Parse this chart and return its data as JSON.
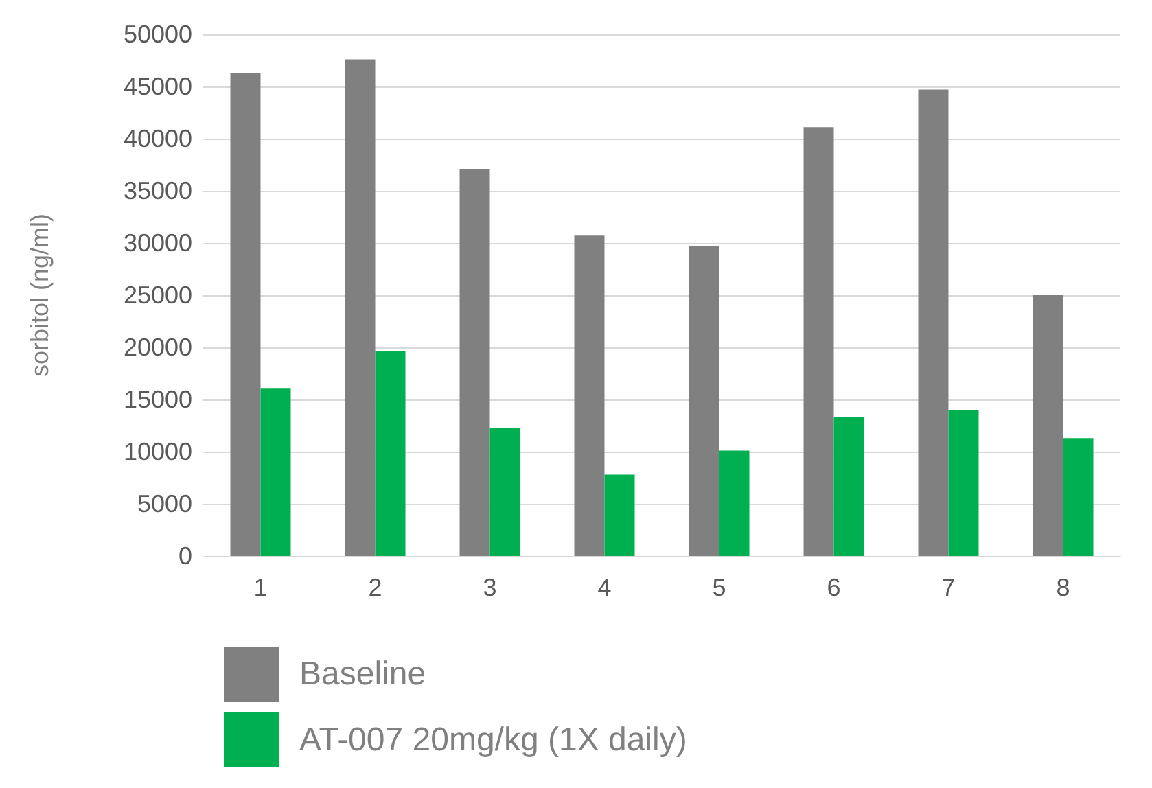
{
  "chart_data": {
    "type": "bar",
    "ylabel": "sorbitol (ng/ml)",
    "categories": [
      "1",
      "2",
      "3",
      "4",
      "5",
      "6",
      "7",
      "8"
    ],
    "series": [
      {
        "name": "Baseline",
        "color": "#808080",
        "values": [
          46300,
          47600,
          37100,
          30700,
          29700,
          41100,
          44700,
          25000
        ]
      },
      {
        "name": "AT-007 20mg/kg (1X daily)",
        "color": "#00b050",
        "values": [
          16100,
          19600,
          12300,
          7800,
          10100,
          13300,
          14000,
          11300
        ]
      }
    ],
    "ylim": [
      0,
      50000
    ],
    "yticks": [
      0,
      5000,
      10000,
      15000,
      20000,
      25000,
      30000,
      35000,
      40000,
      45000,
      50000
    ],
    "grid": "y",
    "legend": "bottom"
  }
}
